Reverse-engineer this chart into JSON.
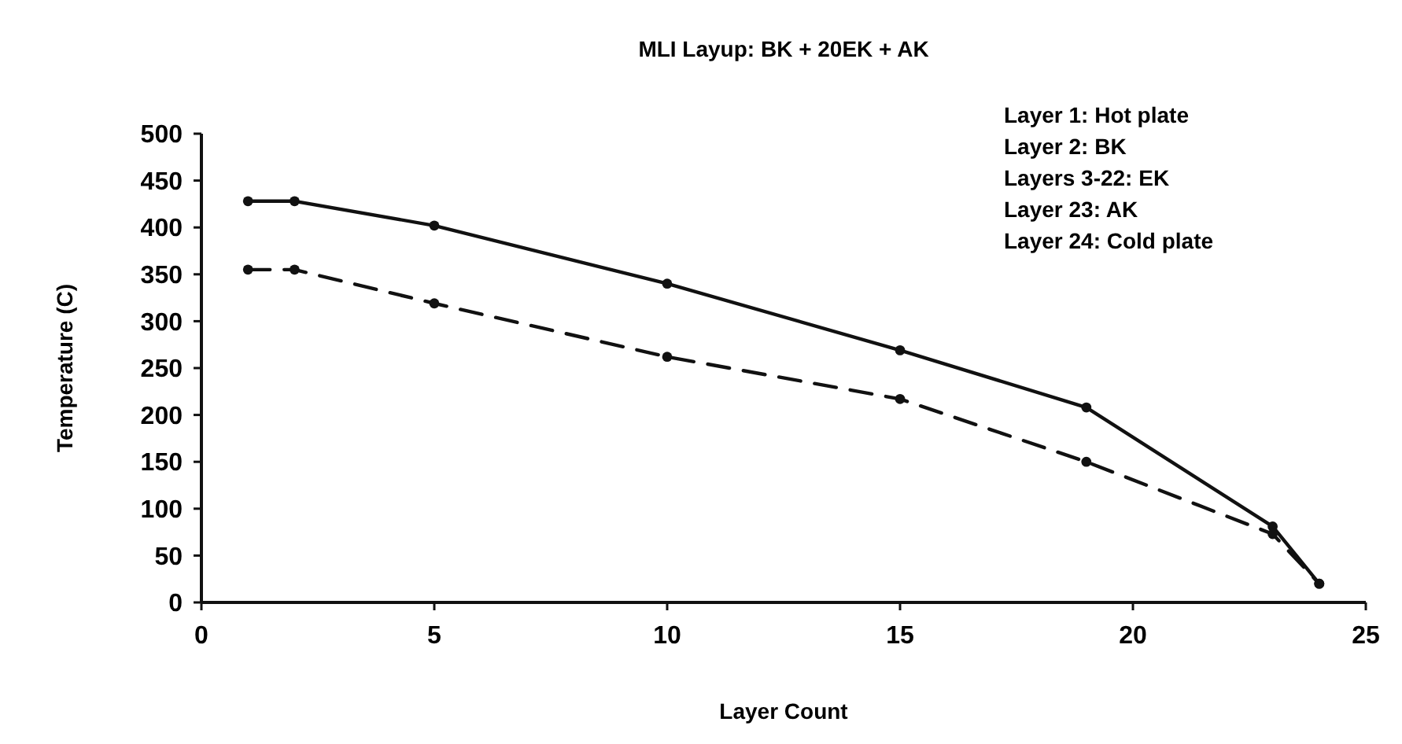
{
  "chart_data": {
    "type": "line",
    "title": "MLI Layup: BK + 20EK + AK",
    "xlabel": "Layer Count",
    "ylabel": "Temperature (C)",
    "annotations": [
      "Layer 1: Hot plate",
      "Layer 2: BK",
      "Layers 3-22: EK",
      "Layer 23: AK",
      "Layer 24: Cold plate"
    ],
    "x": [
      1,
      2,
      5,
      10,
      15,
      19,
      23,
      24
    ],
    "series": [
      {
        "color": "#111111",
        "line_style": "solid",
        "values": [
          428,
          428,
          402,
          340,
          269,
          208,
          81,
          20
        ]
      },
      {
        "color": "#111111",
        "line_style": "dashed",
        "values": [
          355,
          355,
          319,
          262,
          217,
          150,
          73,
          20
        ]
      }
    ],
    "xlim": [
      0,
      25
    ],
    "xticks": [
      0,
      5,
      10,
      15,
      20,
      25
    ],
    "ylim": [
      0,
      500
    ],
    "yticks": [
      0,
      50,
      100,
      150,
      200,
      250,
      300,
      350,
      400,
      450,
      500
    ],
    "grid": false,
    "marker": "circle"
  }
}
